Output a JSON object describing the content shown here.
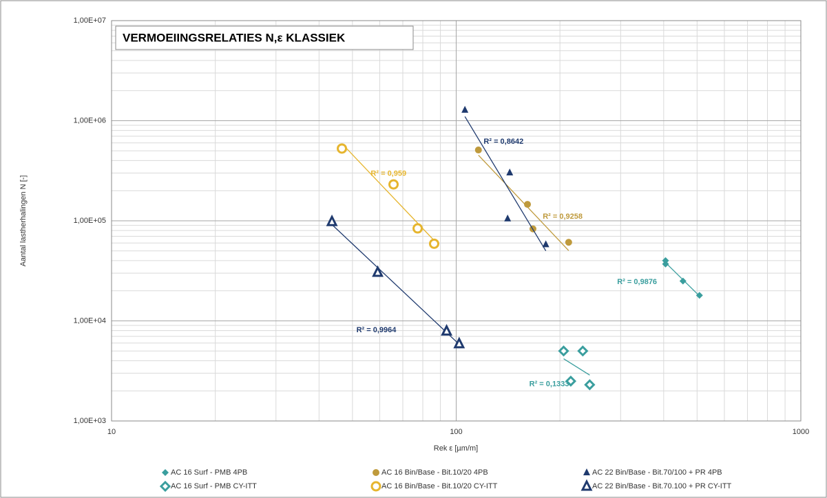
{
  "chart_data": {
    "type": "scatter",
    "title": "VERMOEIINGSRELATIES N,ε KLASSIEK",
    "x_label": "Rek ε [µm/m]",
    "y_label": "Aantal lastherhalingen N [-]",
    "log_x": true,
    "log_y": true,
    "grid": true,
    "legend": "bottom",
    "xlim": [
      10,
      1000
    ],
    "xticks": [
      10,
      100,
      1000
    ],
    "ylim": [
      1000,
      10000000
    ],
    "yticks": [
      {
        "value": 1000,
        "label": "1,00E+03"
      },
      {
        "value": 10000,
        "label": "1,00E+04"
      },
      {
        "value": 100000,
        "label": "1,00E+05"
      },
      {
        "value": 1000000,
        "label": "1,00E+06"
      },
      {
        "value": 10000000,
        "label": "1,00E+07"
      }
    ],
    "series": [
      {
        "name": "AC 16 Surf - PMB 4PB",
        "color": "#3a9e9e",
        "marker": "diamond",
        "x": [
          405,
          405,
          455,
          508
        ],
        "values": [
          40000,
          37000,
          25000,
          18000
        ],
        "r2_label": "R² = 0,9876"
      },
      {
        "name": "AC 16 Surf - PMB CY-ITT",
        "color": "#3a9e9e",
        "marker": "diamond-open",
        "x": [
          205,
          233,
          215,
          244
        ],
        "values": [
          5000,
          5000,
          2500,
          2300
        ],
        "r2_label": "R² = 0,1333"
      },
      {
        "name": "AC 16 Bin/Base - Bit.10/20 4PB",
        "color": "#bf9a3c",
        "marker": "circle",
        "x": [
          116,
          161,
          167,
          212
        ],
        "values": [
          510000,
          146000,
          83000,
          61000
        ],
        "r2_label": "R² = 0,9258"
      },
      {
        "name": "AC 16 Bin/Base - Bit.10/20 CY-ITT",
        "color": "#e6b52e",
        "marker": "circle-open",
        "x": [
          46.6,
          65.8,
          77.3,
          86.3
        ],
        "values": [
          527000,
          231000,
          84000,
          59000
        ],
        "r2_label": "R² = 0,959"
      },
      {
        "name": "AC 22 Bin/Base - Bit.70/100 + PR 4PB",
        "color": "#1f3a6e",
        "marker": "triangle",
        "x": [
          106,
          143,
          141,
          182
        ],
        "values": [
          1280000,
          303000,
          105000,
          58000
        ],
        "r2_label": "R² = 0,8642"
      },
      {
        "name": "AC 22 Bin/Base - Bit.70.100 + PR CY-ITT",
        "color": "#1f3a6e",
        "marker": "triangle-open",
        "x": [
          43.6,
          59.2,
          93.8,
          102
        ],
        "values": [
          98000,
          30500,
          7900,
          5900
        ],
        "r2_label": "R² = 0,9964"
      }
    ]
  }
}
